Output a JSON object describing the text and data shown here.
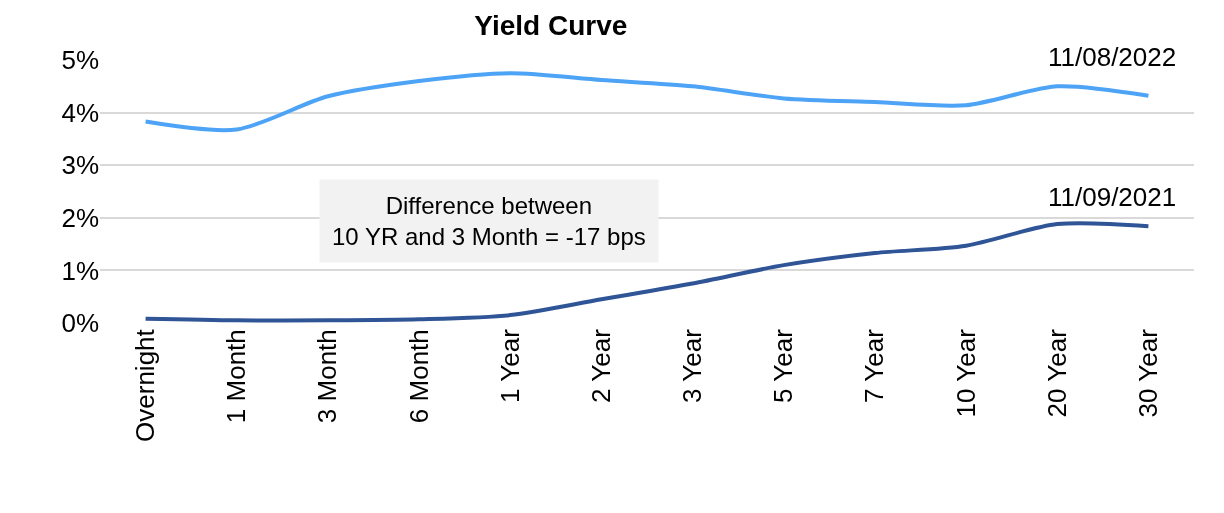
{
  "chart_data": {
    "type": "line",
    "title": "Yield Curve",
    "categories": [
      "Overnight",
      "1 Month",
      "3 Month",
      "6 Month",
      "1 Year",
      "2 Year",
      "3 Year",
      "5 Year",
      "7 Year",
      "10 Year",
      "20 Year",
      "30 Year"
    ],
    "series": [
      {
        "name": "11/08/2022",
        "color": "#4da3f5",
        "values": [
          3.83,
          3.68,
          4.31,
          4.6,
          4.75,
          4.62,
          4.5,
          4.27,
          4.2,
          4.14,
          4.5,
          4.32
        ]
      },
      {
        "name": "11/09/2021",
        "color": "#2f5597",
        "values": [
          0.08,
          0.05,
          0.05,
          0.07,
          0.15,
          0.45,
          0.75,
          1.1,
          1.33,
          1.47,
          1.88,
          1.84
        ]
      }
    ],
    "ylim": [
      0,
      5
    ],
    "yticks": [
      {
        "value": 0,
        "label": "0%"
      },
      {
        "value": 1,
        "label": "1%"
      },
      {
        "value": 2,
        "label": "2%"
      },
      {
        "value": 3,
        "label": "3%"
      },
      {
        "value": 4,
        "label": "4%"
      },
      {
        "value": 5,
        "label": "5%"
      }
    ],
    "grid": "y",
    "legend": false,
    "marker": "none",
    "line_style": "solid",
    "annotations": [
      "Difference between\n10 YR and 3 Month = -17 bps"
    ]
  }
}
